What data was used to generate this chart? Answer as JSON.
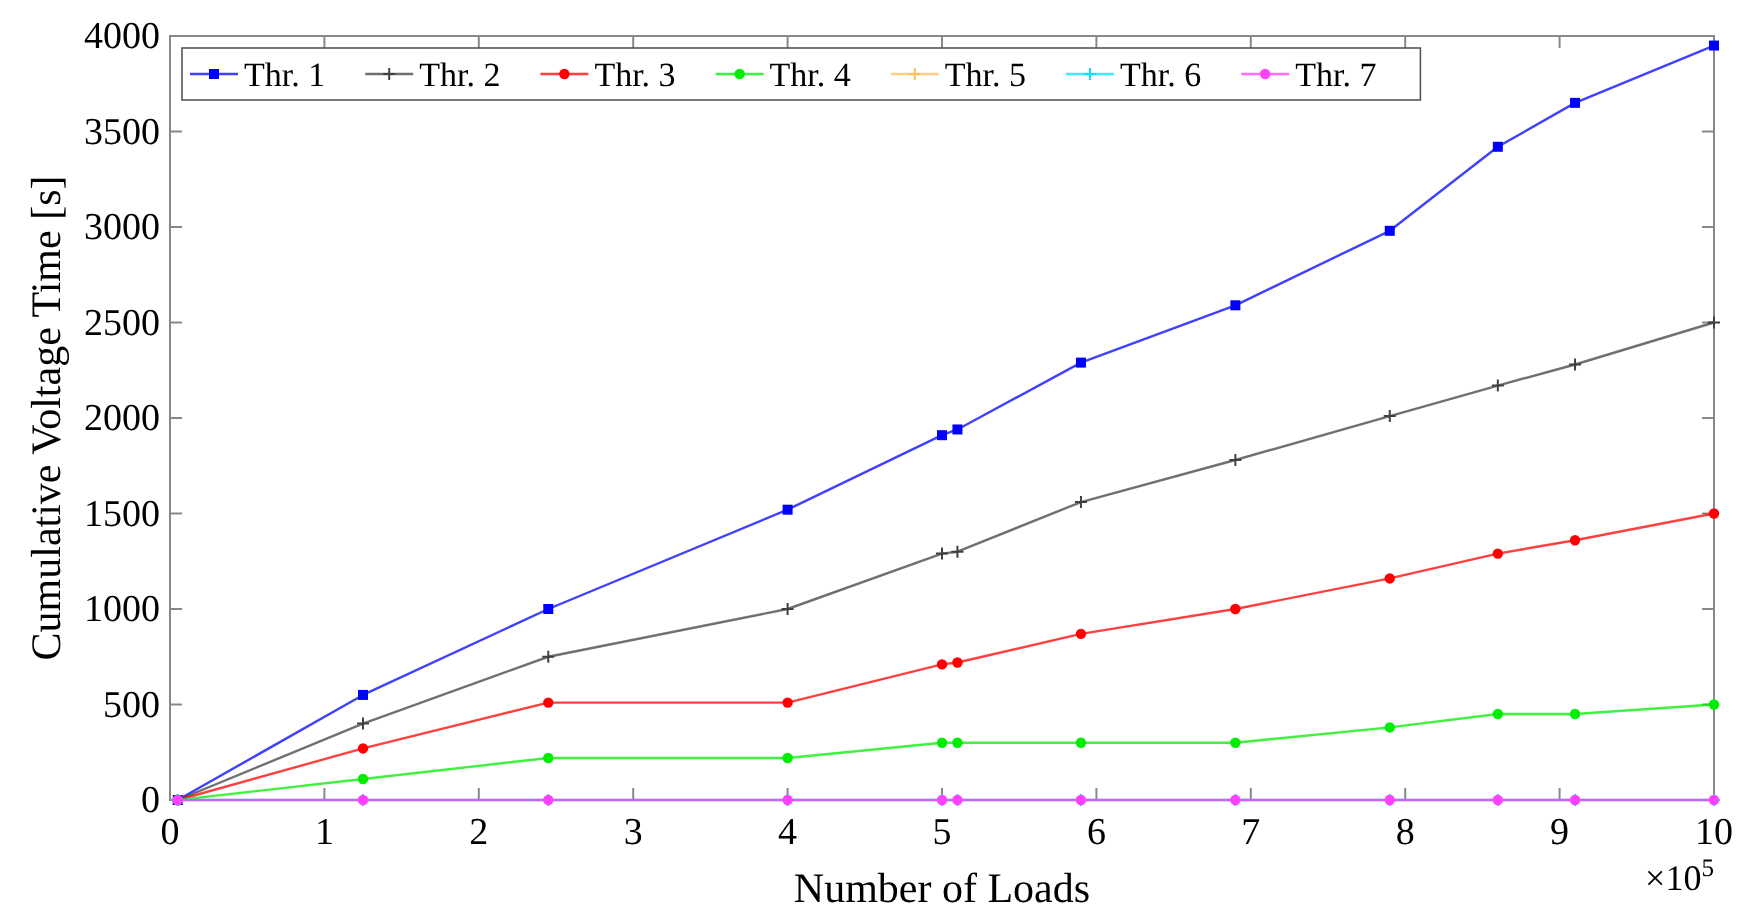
{
  "chart_data": {
    "type": "line",
    "xlabel": "Number of Loads",
    "ylabel": "Cumulative Voltage Time [s]",
    "annotations": [
      "×10$^{5}$"
    ],
    "x": [
      0.05,
      1.25,
      2.45,
      4.0,
      5.0,
      5.1,
      5.9,
      6.9,
      7.9,
      8.6,
      9.1,
      10.0
    ],
    "xlim": [
      0,
      10
    ],
    "xticks": [
      0,
      1,
      2,
      3,
      4,
      5,
      6,
      7,
      8,
      9,
      10
    ],
    "ylim": [
      0,
      4000
    ],
    "yticks": [
      0,
      500,
      1000,
      1500,
      2000,
      2500,
      3000,
      3500,
      4000
    ],
    "grid": false,
    "legend": "top left",
    "series": [
      {
        "name": "Thr. 1",
        "color": "#0000ff",
        "marker": "square",
        "values": [
          0,
          550,
          1000,
          1520,
          1910,
          1940,
          2290,
          2590,
          2980,
          3420,
          3650,
          3950
        ]
      },
      {
        "name": "Thr. 2",
        "color": "#404040",
        "marker": "cross",
        "values": [
          0,
          400,
          750,
          1000,
          1290,
          1300,
          1560,
          1780,
          2010,
          2170,
          2280,
          2500
        ]
      },
      {
        "name": "Thr. 3",
        "color": "#ff0000",
        "marker": "circle",
        "values": [
          0,
          270,
          510,
          510,
          710,
          720,
          870,
          1000,
          1160,
          1290,
          1360,
          1500
        ]
      },
      {
        "name": "Thr. 4",
        "color": "#00ee00",
        "marker": "circle",
        "values": [
          0,
          110,
          220,
          220,
          300,
          300,
          300,
          300,
          380,
          450,
          450,
          500
        ]
      },
      {
        "name": "Thr. 5",
        "color": "#ffc060",
        "marker": "cross",
        "values": [
          null,
          null,
          null,
          null,
          null,
          null,
          null,
          null,
          null,
          null,
          null,
          null
        ]
      },
      {
        "name": "Thr. 6",
        "color": "#00e5ff",
        "marker": "cross",
        "values": [
          0,
          0,
          0,
          0,
          0,
          0,
          0,
          0,
          0,
          0,
          0,
          0
        ]
      },
      {
        "name": "Thr. 7",
        "color": "#ff40ff",
        "marker": "circle",
        "values": [
          0,
          0,
          0,
          0,
          0,
          0,
          0,
          0,
          0,
          0,
          0,
          0
        ]
      }
    ]
  }
}
